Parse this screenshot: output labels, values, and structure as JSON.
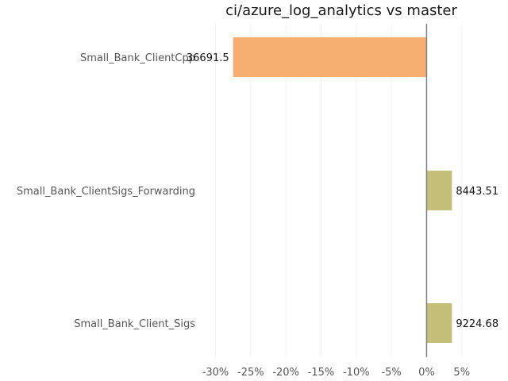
{
  "chart_data": {
    "type": "bar",
    "orientation": "horizontal",
    "title": "ci/azure_log_analytics vs master",
    "xlabel": "",
    "ylabel": "",
    "grid": true,
    "xlim": [
      -32.2,
      8.3
    ],
    "x_ticks": [
      -30,
      -25,
      -20,
      -15,
      -10,
      -5,
      0,
      5
    ],
    "x_tick_labels": [
      "-30%",
      "-25%",
      "-20%",
      "-15%",
      "-10%",
      "-5%",
      "0%",
      "5%"
    ],
    "categories": [
      "Small_Bank_ClientCpp",
      "Small_Bank_ClientSigs_Forwarding",
      "Small_Bank_Client_Sigs"
    ],
    "values": [
      -27.5,
      3.6,
      3.6
    ],
    "data_labels": [
      "36691.5",
      "8443.51",
      "9224.68"
    ],
    "colors": [
      "#f5ae6f",
      "#c5bf79",
      "#c5bf79"
    ],
    "zero_line_color": "#808080",
    "grid_color": "#f0f0f0"
  }
}
